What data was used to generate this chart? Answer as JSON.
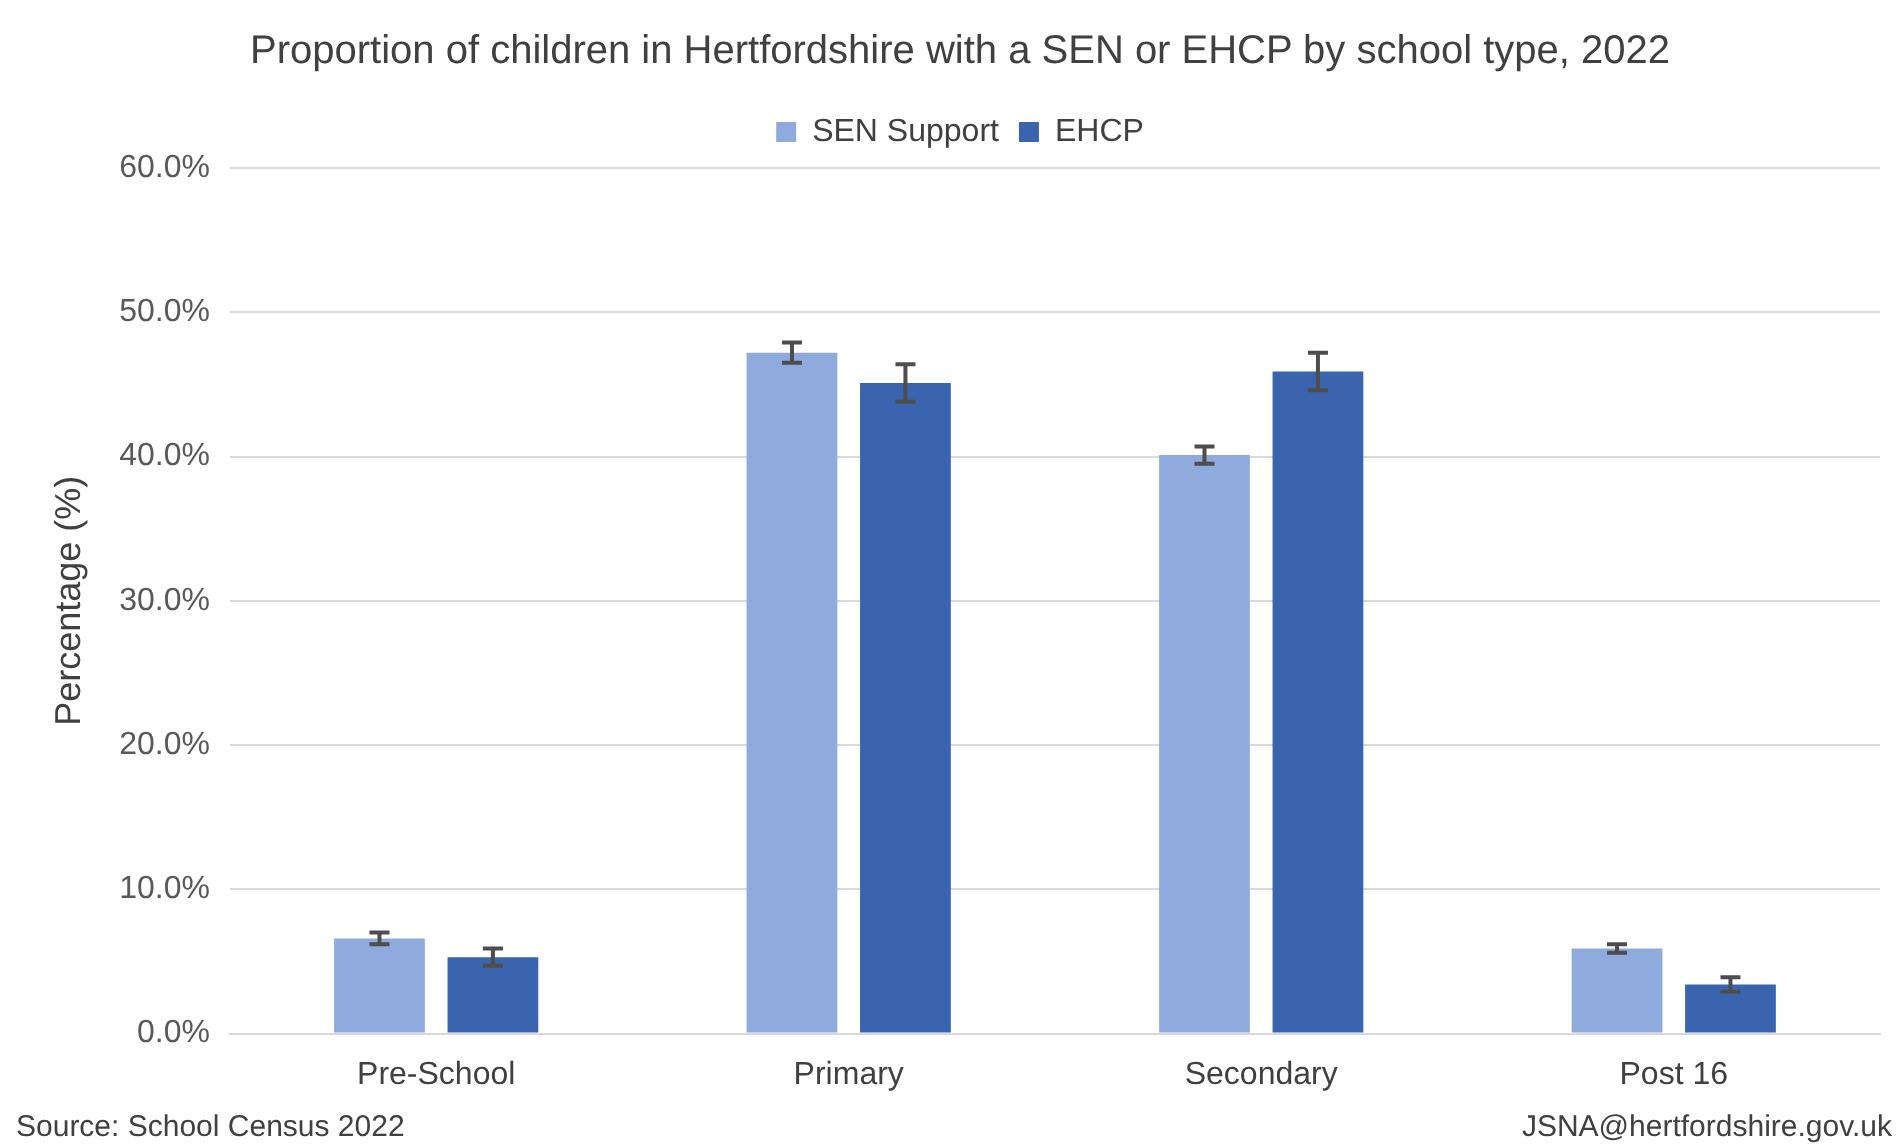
{
  "chart_data": {
    "type": "bar",
    "title": "Proportion of children in Hertfordshire with a SEN or EHCP by school type, 2022",
    "ylabel": "Percentage (%)",
    "categories": [
      "Pre-School",
      "Primary",
      "Secondary",
      "Post 16"
    ],
    "series": [
      {
        "name": "SEN Support",
        "color": "#8faadc",
        "values": [
          6.6,
          47.2,
          40.1,
          5.9
        ],
        "errors": [
          0.4,
          0.7,
          0.6,
          0.3
        ]
      },
      {
        "name": "EHCP",
        "color": "#3a64ad",
        "values": [
          5.3,
          45.1,
          45.9,
          3.4
        ],
        "errors": [
          0.6,
          1.3,
          1.3,
          0.5
        ]
      }
    ],
    "ylim": [
      0,
      60
    ],
    "yticks": [
      {
        "value": 0,
        "label": "0.0%"
      },
      {
        "value": 10,
        "label": "10.0%"
      },
      {
        "value": 20,
        "label": "20.0%"
      },
      {
        "value": 30,
        "label": "30.0%"
      },
      {
        "value": 40,
        "label": "40.0%"
      },
      {
        "value": 50,
        "label": "50.0%"
      },
      {
        "value": 60,
        "label": "60.0%"
      }
    ],
    "grid": "y",
    "legend": "top",
    "annotations": [
      "Source: School Census 2022",
      "JSNA@hertfordshire.gov.uk"
    ]
  }
}
